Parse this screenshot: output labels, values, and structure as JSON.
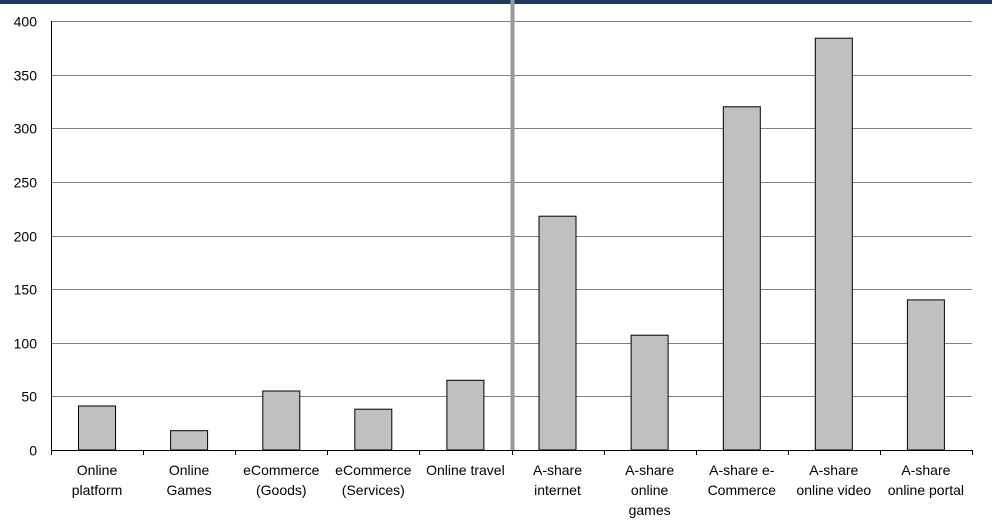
{
  "chart_data": {
    "type": "bar",
    "categories": [
      [
        "Online",
        "platform"
      ],
      [
        "Online",
        "Games"
      ],
      [
        "eCommerce",
        "(Goods)"
      ],
      [
        "eCommerce",
        "(Services)"
      ],
      [
        "Online travel"
      ],
      [
        "A-share",
        "internet"
      ],
      [
        "A-share",
        "online",
        "games"
      ],
      [
        "A-share e-",
        "Commerce"
      ],
      [
        "A-share",
        "online video"
      ],
      [
        "A-share",
        "online portal"
      ]
    ],
    "values": [
      41,
      18,
      55,
      38,
      65,
      218,
      107,
      320,
      384,
      140
    ],
    "ylim": [
      0,
      400
    ],
    "yticks": [
      0,
      50,
      100,
      150,
      200,
      250,
      300,
      350,
      400
    ],
    "grid": true,
    "divider_after_category_index": 4,
    "colors": {
      "bar_fill": "#c0c0c0",
      "bar_stroke": "#000000",
      "grid": "#808080",
      "divider": "#999999",
      "top_rule": "#1f3b63"
    }
  }
}
